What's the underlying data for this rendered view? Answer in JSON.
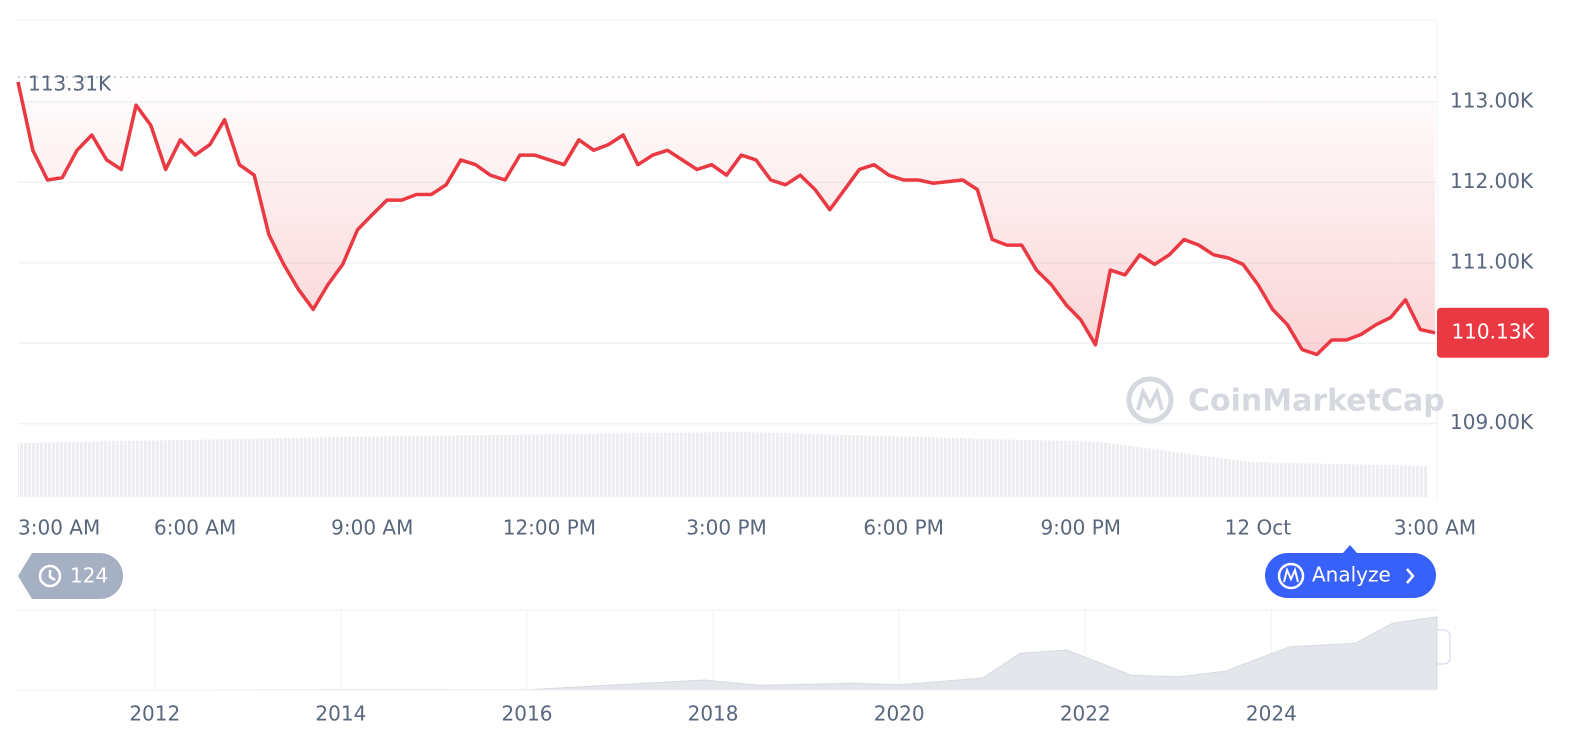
{
  "chart_data": [
    {
      "type": "line",
      "categories": [
        "3:00 AM",
        null,
        null,
        null,
        null,
        null,
        null,
        null,
        null,
        null,
        null,
        null,
        "6:00 AM",
        null,
        null,
        null,
        null,
        null,
        null,
        null,
        null,
        null,
        null,
        null,
        "9:00 AM",
        null,
        null,
        null,
        null,
        null,
        null,
        null,
        null,
        null,
        null,
        null,
        "12:00 PM",
        null,
        null,
        null,
        null,
        null,
        null,
        null,
        null,
        null,
        null,
        null,
        "3:00 PM",
        null,
        null,
        null,
        null,
        null,
        null,
        null,
        null,
        null,
        null,
        null,
        "6:00 PM",
        null,
        null,
        null,
        null,
        null,
        null,
        null,
        null,
        null,
        null,
        null,
        "9:00 PM",
        null,
        null,
        null,
        null,
        null,
        null,
        null,
        null,
        null,
        null,
        null,
        "12 Oct",
        null,
        null,
        null,
        null,
        null,
        null,
        null,
        null,
        null,
        null,
        null,
        "3:00 AM"
      ],
      "values": [
        113250,
        112400,
        112030,
        112060,
        112400,
        112590,
        112280,
        112160,
        112960,
        112710,
        112160,
        112530,
        112340,
        112470,
        112780,
        112220,
        112090,
        111350,
        110980,
        110670,
        110420,
        110730,
        110980,
        111410,
        111600,
        111780,
        111780,
        111850,
        111850,
        111970,
        112280,
        112220,
        112090,
        112030,
        112340,
        112340,
        112280,
        112220,
        112530,
        112400,
        112470,
        112590,
        112220,
        112340,
        112400,
        112280,
        112160,
        112220,
        112090,
        112340,
        112280,
        112030,
        111970,
        112090,
        111910,
        111660,
        111910,
        112160,
        112220,
        112090,
        112030,
        112030,
        111990,
        112010,
        112030,
        111910,
        111290,
        111220,
        111220,
        110910,
        110730,
        110480,
        110290,
        109980,
        110910,
        110850,
        111100,
        110980,
        111100,
        111290,
        111220,
        111100,
        111060,
        110980,
        110730,
        110420,
        110230,
        109920,
        109860,
        110040,
        110040,
        110110,
        110230,
        110320,
        110540,
        110170,
        110130
      ],
      "color": "#ea3943",
      "ylim": [
        108050,
        114020
      ],
      "yticks": [
        {
          "value": 109000,
          "label": "109.00K"
        },
        {
          "value": 110000,
          "label": "110.00K"
        },
        {
          "value": 111000,
          "label": "111.00K"
        },
        {
          "value": 112000,
          "label": "112.00K"
        },
        {
          "value": 113000,
          "label": "113.00K"
        }
      ],
      "grid": true,
      "high_label": {
        "value": 113310,
        "label": "113.31K"
      },
      "last_label": {
        "value": 110130,
        "label": "110.13K"
      },
      "watermark": "CoinMarketCap"
    },
    {
      "type": "area",
      "x": [
        2010.53,
        2013,
        2014,
        2016,
        2017.9,
        2018.5,
        2019.5,
        2020,
        2020.9,
        2021.3,
        2021.8,
        2022.5,
        2023,
        2023.5,
        2024.2,
        2024.9,
        2025.3,
        2025.78
      ],
      "values": [
        0,
        100,
        600,
        400,
        15000,
        7000,
        10000,
        8000,
        18000,
        55000,
        60000,
        22000,
        20000,
        28000,
        65000,
        70000,
        100000,
        110000
      ],
      "color": "#e3e6ea",
      "xlim": [
        2010.53,
        2025.78
      ],
      "xticks": [
        2012,
        2014,
        2016,
        2018,
        2020,
        2022,
        2024
      ],
      "ylim": [
        0,
        120000
      ]
    }
  ],
  "controls": {
    "history_count": 124,
    "analyze_button": "Analyze"
  }
}
